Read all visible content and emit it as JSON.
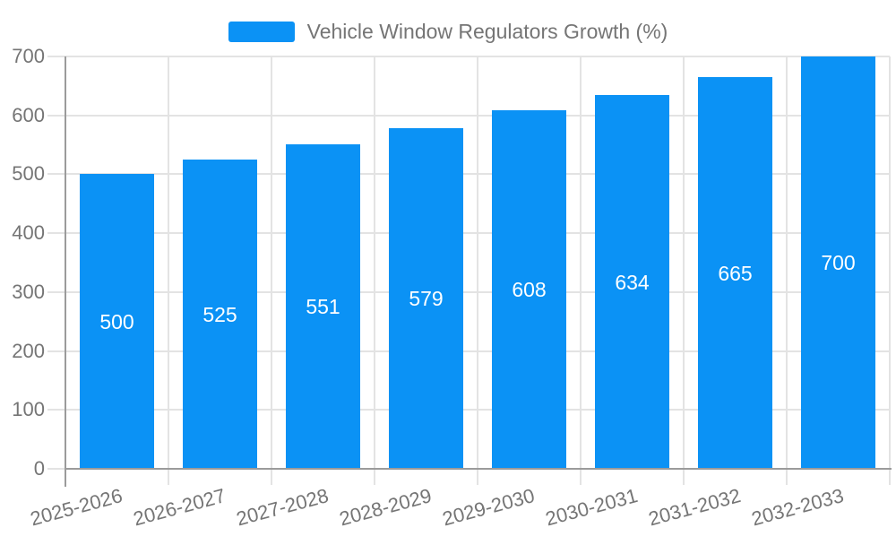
{
  "legend": {
    "series_label": "Vehicle Window Regulators Growth (%)"
  },
  "chart_data": {
    "type": "bar",
    "title": "Vehicle Window Regulators Growth (%)",
    "categories": [
      "2025-2026",
      "2026-2027",
      "2027-2028",
      "2028-2029",
      "2029-2030",
      "2030-2031",
      "2031-2032",
      "2032-2033"
    ],
    "values": [
      500,
      525,
      551,
      579,
      608,
      634,
      665,
      700
    ],
    "xlabel": "",
    "ylabel": "",
    "ylim": [
      0,
      700
    ],
    "yticks": [
      0,
      100,
      200,
      300,
      400,
      500,
      600,
      700
    ],
    "grid": true,
    "legend_position": "top-center",
    "value_labels": "inside-center",
    "x_label_rotation_deg": -15,
    "bar_color": "#0b92f5",
    "grid_color": "#e3e3e3",
    "axis_color": "#9b9b9b",
    "text_color": "#757575",
    "value_label_color": "#ffffff",
    "background_color": "#ffffff"
  }
}
